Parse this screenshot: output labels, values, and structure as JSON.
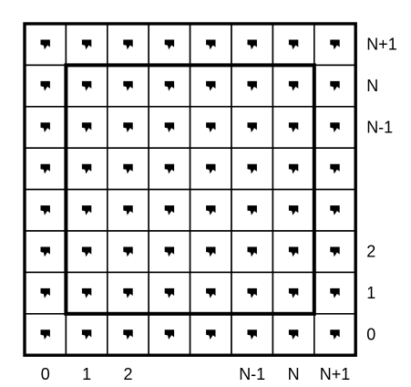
{
  "diagram": {
    "grid": {
      "rows": 8,
      "cols": 8,
      "cell_marker": "arrow-marker-icon",
      "colors": {
        "line": "#000000",
        "marker": "#000000",
        "background": "#ffffff"
      }
    },
    "x_labels": [
      {
        "label": "0",
        "col": 0
      },
      {
        "label": "1",
        "col": 1
      },
      {
        "label": "2",
        "col": 2
      },
      {
        "label": "N-1",
        "col": 5
      },
      {
        "label": "N",
        "col": 6
      },
      {
        "label": "N+1",
        "col": 7
      }
    ],
    "y_labels": [
      {
        "label": "N+1",
        "row": 0
      },
      {
        "label": "N",
        "row": 1
      },
      {
        "label": "N-1",
        "row": 2
      },
      {
        "label": "2",
        "row": 5
      },
      {
        "label": "1",
        "row": 6
      },
      {
        "label": "0",
        "row": 7
      }
    ]
  }
}
